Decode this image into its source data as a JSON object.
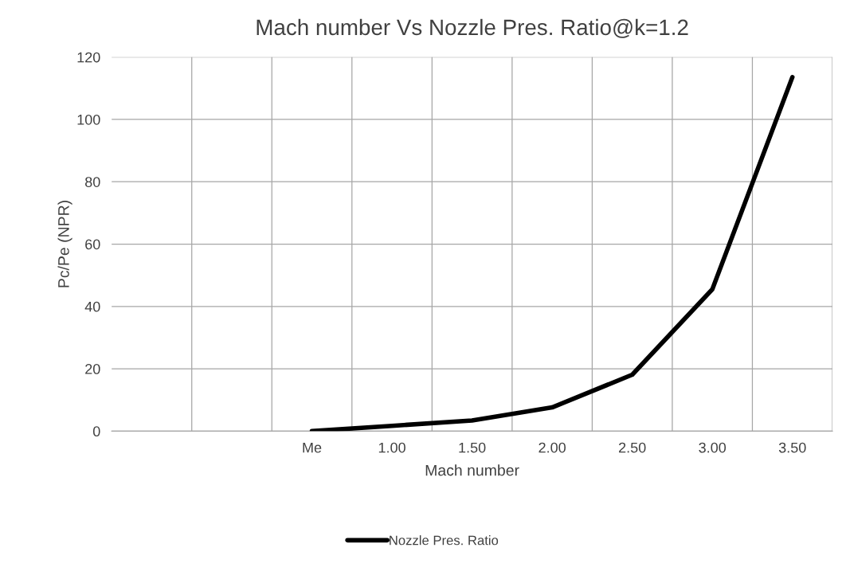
{
  "chart_data": {
    "type": "line",
    "title": "Mach number Vs Nozzle Pres. Ratio@k=1.2",
    "xlabel": "Mach number",
    "ylabel": "Pc/Pe (NPR)",
    "categories": [
      null,
      null,
      "Me",
      "1.00",
      "1.50",
      "2.00",
      "2.50",
      "3.00",
      "3.50"
    ],
    "series": [
      {
        "name": "Nozzle Pres. Ratio",
        "color": "#000000",
        "values": [
          null,
          null,
          0,
          1.7,
          3.4,
          7.6,
          18.1,
          45.5,
          113.6
        ]
      }
    ],
    "ylim": [
      0,
      120
    ],
    "yticks": [
      0,
      20,
      40,
      60,
      80,
      100,
      120
    ],
    "grid": true,
    "legend": "bottom",
    "marker": "none",
    "line_style": "solid"
  }
}
